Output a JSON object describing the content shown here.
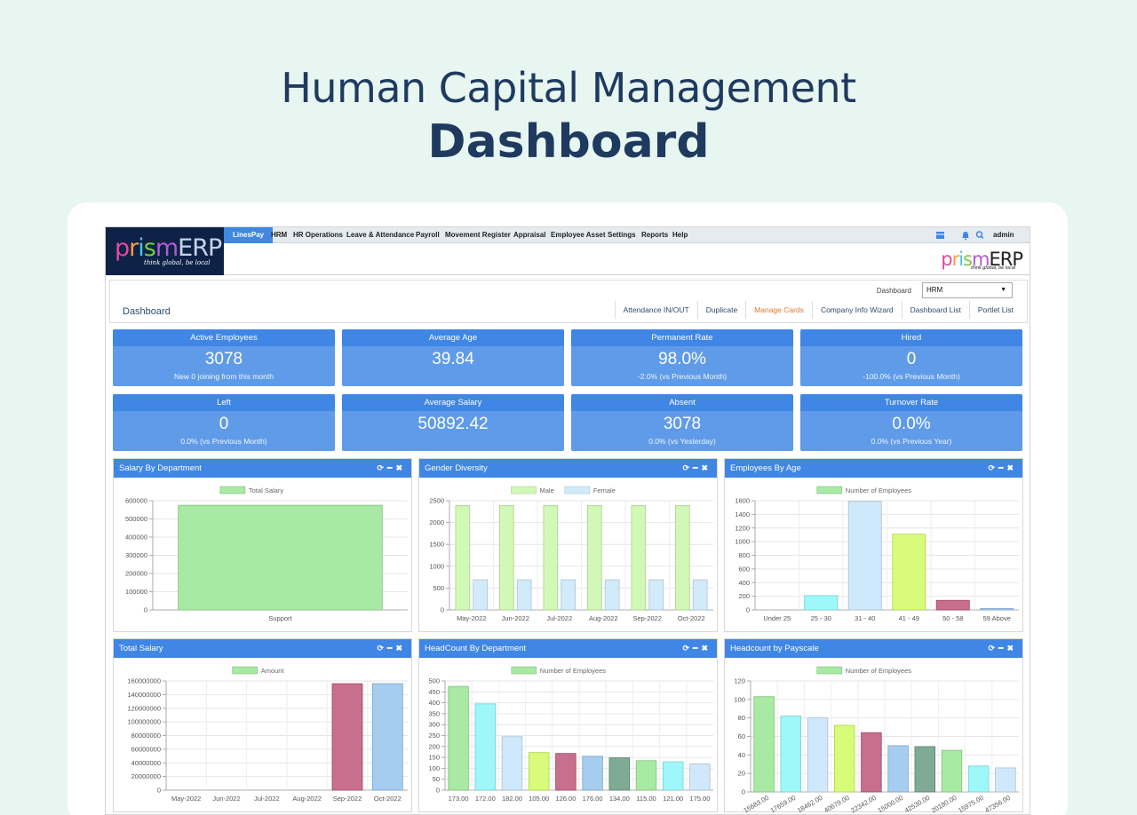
{
  "hero": {
    "line1": "Human Capital Management",
    "line2": "Dashboard"
  },
  "logo": {
    "text_a": "prism",
    "text_b": "ERP",
    "tagline": "think global, be local"
  },
  "menu": [
    "LinesPay",
    "HRM",
    "HR Operations",
    "Leave & Attendance",
    "Payroll",
    "Movement Register",
    "Appraisal",
    "Employee Asset",
    "Settings",
    "Reports",
    "Help"
  ],
  "user": {
    "name": "admin"
  },
  "dashboard": {
    "label": "Dashboard",
    "select_label": "Dashboard",
    "selected": "HRM",
    "tabs": [
      "Attendance IN/OUT",
      "Duplicate",
      "Manage Cards",
      "Company Info Wizard",
      "Dashboard List",
      "Portlet List"
    ]
  },
  "kpis": [
    {
      "title": "Active Employees",
      "value": "3078",
      "sub": "New 0 joining from this month"
    },
    {
      "title": "Average Age",
      "value": "39.84",
      "sub": ""
    },
    {
      "title": "Permanent Rate",
      "value": "98.0%",
      "sub": "-2.0% (vs Previous Month)"
    },
    {
      "title": "Hired",
      "value": "0",
      "sub": "-100.0% (vs Previous Month)"
    },
    {
      "title": "Left",
      "value": "0",
      "sub": "0.0% (vs Previous Month)"
    },
    {
      "title": "Average Salary",
      "value": "50892.42",
      "sub": ""
    },
    {
      "title": "Absent",
      "value": "3078",
      "sub": "0.0% (vs Yesterday)"
    },
    {
      "title": "Turnover Rate",
      "value": "0.0%",
      "sub": "0.0% (vs Previous Year)"
    }
  ],
  "colors": {
    "header_blue": "#3f86e5",
    "kpi_blue": "#5f9be8",
    "title": "#1f3a5f",
    "accent_orange": "#e1772b"
  },
  "chart_data": [
    {
      "id": "salary-dept",
      "title": "Salary By Department",
      "type": "bar",
      "categories": [
        "Support"
      ],
      "series": [
        {
          "name": "Total Salary",
          "values": [
            575000
          ],
          "colors": [
            "#a8e9a4"
          ]
        }
      ],
      "ylim": [
        0,
        600000
      ],
      "yticks": [
        0,
        100000,
        200000,
        300000,
        400000,
        500000,
        600000
      ]
    },
    {
      "id": "gender",
      "title": "Gender Diversity",
      "type": "bar",
      "categories": [
        "May-2022",
        "Jun-2022",
        "Jul-2022",
        "Aug-2022",
        "Sep-2022",
        "Oct-2022"
      ],
      "series": [
        {
          "name": "Male",
          "values": [
            2390,
            2390,
            2390,
            2390,
            2390,
            2390
          ],
          "colors": [
            "#d2f8b8"
          ]
        },
        {
          "name": "Female",
          "values": [
            690,
            690,
            690,
            690,
            690,
            690
          ],
          "colors": [
            "#d2ebfb"
          ]
        }
      ],
      "ylim": [
        0,
        2500
      ],
      "yticks": [
        0,
        500,
        1000,
        1500,
        2000,
        2500
      ]
    },
    {
      "id": "age",
      "title": "Employees By Age",
      "type": "bar",
      "categories": [
        "Under 25",
        "25 - 30",
        "31 - 40",
        "41 - 49",
        "50 - 58",
        "59 Above"
      ],
      "series": [
        {
          "name": "Number of Employees",
          "values": [
            0,
            210,
            1590,
            1110,
            140,
            20
          ],
          "colors": [
            "#a8e9a4",
            "#9ef8fb",
            "#cfe8fb",
            "#d8fc7a",
            "#c76f8c",
            "#a5cdf0"
          ]
        }
      ],
      "ylim": [
        0,
        1600
      ],
      "yticks": [
        0,
        200,
        400,
        600,
        800,
        1000,
        1200,
        1400,
        1600
      ]
    },
    {
      "id": "total-salary",
      "title": "Total Salary",
      "type": "bar",
      "categories": [
        "May-2022",
        "Jun-2022",
        "Jul-2022",
        "Aug-2022",
        "Sep-2022",
        "Oct-2022"
      ],
      "series": [
        {
          "name": "Amount",
          "values": [
            0,
            0,
            0,
            0,
            156000000,
            156000000
          ],
          "colors": [
            "#a8e9a4",
            "#9ef8fb",
            "#cfe8fb",
            "#d8fc7a",
            "#c76f8c",
            "#a5cdf0"
          ]
        }
      ],
      "ylim": [
        0,
        160000000
      ],
      "yticks": [
        0,
        20000000,
        40000000,
        60000000,
        80000000,
        100000000,
        120000000,
        140000000,
        160000000
      ]
    },
    {
      "id": "headcount-dept",
      "title": "HeadCount By Department",
      "type": "bar",
      "categories": [
        "173.00",
        "172.00",
        "182.00",
        "105.00",
        "126.00",
        "176.00",
        "134.00",
        "115.00",
        "121.00",
        "175.00"
      ],
      "series": [
        {
          "name": "Number of Employees",
          "values": [
            475,
            395,
            245,
            172,
            168,
            155,
            148,
            135,
            130,
            120
          ],
          "colors": [
            "#a8e9a4",
            "#9ef8fb",
            "#cfe8fb",
            "#d8fc7a",
            "#c76f8c",
            "#a5cdf0",
            "#7faa94",
            "#a8e9a4",
            "#9ef8fb",
            "#cfe8fb"
          ]
        }
      ],
      "ylim": [
        0,
        500
      ],
      "yticks": [
        0,
        50,
        100,
        150,
        200,
        250,
        300,
        350,
        400,
        450,
        500
      ]
    },
    {
      "id": "payscale",
      "title": "Headcount by Payscale",
      "type": "bar",
      "categories": [
        "15683.00",
        "17659.00",
        "18462.00",
        "40679.00",
        "22342.00",
        "15000.00",
        "42530.00",
        "20180.00",
        "15975.00",
        "47356.00"
      ],
      "series": [
        {
          "name": "Number of Employees",
          "values": [
            103,
            82,
            80,
            72,
            64,
            50,
            49,
            45,
            28,
            26
          ],
          "colors": [
            "#a8e9a4",
            "#9ef8fb",
            "#cfe8fb",
            "#d8fc7a",
            "#c76f8c",
            "#a5cdf0",
            "#7faa94",
            "#a8e9a4",
            "#9ef8fb",
            "#cfe8fb"
          ]
        }
      ],
      "ylim": [
        0,
        120
      ],
      "yticks": [
        0,
        20,
        40,
        60,
        80,
        100,
        120
      ]
    }
  ]
}
